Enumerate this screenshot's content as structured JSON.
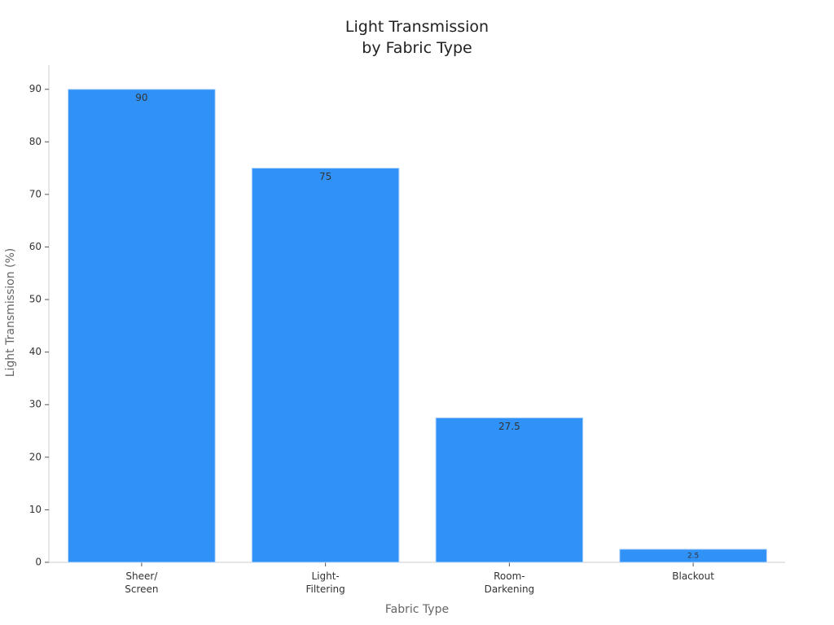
{
  "chart_data": {
    "type": "bar",
    "title": "Light Transmission\nby Fabric Type",
    "x_label": "Fabric Type",
    "y_label": "Light Transmission (%)",
    "categories": [
      "Sheer/\nScreen",
      "Light-\nFiltering",
      "Room-\nDarkening",
      "Blackout"
    ],
    "values": [
      90,
      75,
      27.5,
      2.5
    ],
    "color": "#3091f7",
    "ylim": [
      0,
      94.6
    ],
    "yticks": [
      0,
      10,
      20,
      30,
      40,
      50,
      60,
      70,
      80,
      90
    ],
    "grid": false
  }
}
